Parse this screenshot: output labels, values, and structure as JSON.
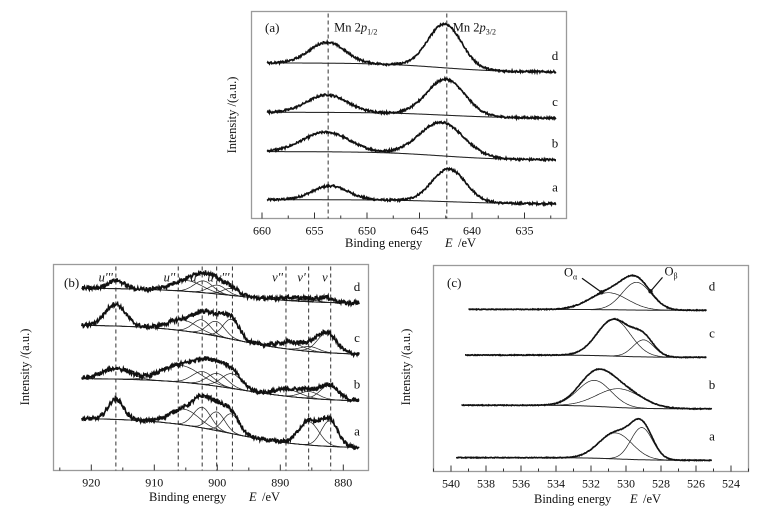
{
  "chart_data": [
    {
      "id": "a",
      "type": "line",
      "title": "(a)",
      "panel_label": "(a)",
      "xlabel": "Binding energy",
      "xlabel_var": "E",
      "xlabel_unit": "/eV",
      "ylabel": "Intensity /(a.u.)",
      "xlim": [
        661,
        631
      ],
      "xticks": [
        660,
        655,
        650,
        645,
        640,
        635
      ],
      "xminor_step": 2.5,
      "grid": false,
      "reference_lines": [
        {
          "x": 653.7,
          "label_main": "Mn 2",
          "label_italic": "p",
          "label_sub": "1/2"
        },
        {
          "x": 642.4,
          "label_main": "Mn 2",
          "label_italic": "p",
          "label_sub": "3/2"
        }
      ],
      "x_range": [
        659.5,
        632
      ],
      "series": [
        {
          "name": "a",
          "offset": 0.0,
          "bg_high": 0.1,
          "bg_low": 0.0,
          "bg_step": 642.0,
          "peaks": [
            {
              "center": 653.5,
              "height": 0.33,
              "width": 1.7
            },
            {
              "center": 642.2,
              "height": 0.78,
              "width": 1.6
            }
          ]
        },
        {
          "name": "b",
          "offset": 1.05,
          "bg_high": 0.2,
          "bg_low": 0.0,
          "bg_step": 643.0,
          "peaks": [
            {
              "center": 653.9,
              "height": 0.47,
              "width": 2.2
            },
            {
              "center": 642.9,
              "height": 0.8,
              "width": 2.1
            }
          ]
        },
        {
          "name": "c",
          "offset": 2.05,
          "bg_high": 0.14,
          "bg_low": 0.0,
          "bg_step": 642.5,
          "peaks": [
            {
              "center": 653.8,
              "height": 0.42,
              "width": 1.9
            },
            {
              "center": 642.5,
              "height": 0.86,
              "width": 1.8
            }
          ]
        },
        {
          "name": "d",
          "offset": 3.15,
          "bg_high": 0.22,
          "bg_low": 0.0,
          "bg_step": 643.0,
          "peaks": [
            {
              "center": 653.8,
              "height": 0.5,
              "width": 1.7
            },
            {
              "center": 642.6,
              "height": 1.05,
              "width": 1.6
            }
          ]
        }
      ],
      "ylim": [
        -0.35,
        4.6
      ]
    },
    {
      "id": "b",
      "type": "line",
      "title": "(b)",
      "panel_label": "(b)",
      "xlabel": "Binding energy",
      "xlabel_var": "E",
      "xlabel_unit": "/eV",
      "ylabel": "Intensity /(a.u.)",
      "xlim": [
        926,
        876
      ],
      "xticks": [
        920,
        910,
        900,
        890,
        880
      ],
      "xminor_step": 5,
      "grid": false,
      "reference_lines": [
        {
          "x": 916.1,
          "label": "u'''"
        },
        {
          "x": 906.2,
          "label": "u''"
        },
        {
          "x": 902.4,
          "label": "u'"
        },
        {
          "x": 900.1,
          "label": "u"
        },
        {
          "x": 897.6,
          "label": "v'''"
        },
        {
          "x": 889.1,
          "label": "v''"
        },
        {
          "x": 885.5,
          "label": "v'"
        },
        {
          "x": 882.0,
          "label": "v"
        }
      ],
      "x_range": [
        921.5,
        877.5
      ],
      "series": [
        {
          "name": "a",
          "offset": 0.0,
          "bg_high": 0.62,
          "bg_low": 0.0,
          "bg_step": 898.0,
          "peaks": [
            {
              "center": 916.1,
              "height": 0.42,
              "width": 1.2
            },
            {
              "center": 905.2,
              "height": 0.32,
              "width": 2.3
            },
            {
              "center": 902.4,
              "height": 0.42,
              "width": 1.4
            },
            {
              "center": 900.1,
              "height": 0.38,
              "width": 1.3
            },
            {
              "center": 897.8,
              "height": 0.4,
              "width": 1.3
            },
            {
              "center": 885.5,
              "height": 0.48,
              "width": 1.6
            },
            {
              "center": 882.2,
              "height": 0.52,
              "width": 1.3
            }
          ]
        },
        {
          "name": "b",
          "offset": 0.95,
          "bg_high": 0.48,
          "bg_low": 0.0,
          "bg_step": 896.0,
          "peaks": [
            {
              "center": 916.0,
              "height": 0.22,
              "width": 2.2
            },
            {
              "center": 905.8,
              "height": 0.34,
              "width": 3.0
            },
            {
              "center": 902.3,
              "height": 0.26,
              "width": 1.7
            },
            {
              "center": 900.0,
              "height": 0.26,
              "width": 1.6
            },
            {
              "center": 897.7,
              "height": 0.3,
              "width": 1.6
            },
            {
              "center": 888.8,
              "height": 0.14,
              "width": 2.0
            },
            {
              "center": 885.4,
              "height": 0.14,
              "width": 1.5
            },
            {
              "center": 882.2,
              "height": 0.3,
              "width": 1.4
            }
          ]
        },
        {
          "name": "c",
          "offset": 1.9,
          "bg_high": 0.62,
          "bg_low": 0.0,
          "bg_step": 897.0,
          "peaks": [
            {
              "center": 916.2,
              "height": 0.45,
              "width": 1.6
            },
            {
              "center": 905.5,
              "height": 0.22,
              "width": 2.3
            },
            {
              "center": 902.5,
              "height": 0.28,
              "width": 1.4
            },
            {
              "center": 900.2,
              "height": 0.3,
              "width": 1.4
            },
            {
              "center": 897.8,
              "height": 0.4,
              "width": 1.3
            },
            {
              "center": 888.5,
              "height": 0.14,
              "width": 2.0
            },
            {
              "center": 885.3,
              "height": 0.1,
              "width": 1.4
            },
            {
              "center": 882.6,
              "height": 0.4,
              "width": 1.5
            }
          ]
        },
        {
          "name": "d",
          "offset": 2.95,
          "bg_high": 0.32,
          "bg_low": 0.0,
          "bg_step": 897.0,
          "peaks": [
            {
              "center": 916.1,
              "height": 0.17,
              "width": 1.3
            },
            {
              "center": 904.8,
              "height": 0.22,
              "width": 2.4
            },
            {
              "center": 902.2,
              "height": 0.24,
              "width": 1.5
            },
            {
              "center": 900.0,
              "height": 0.18,
              "width": 1.4
            },
            {
              "center": 897.8,
              "height": 0.14,
              "width": 1.3
            },
            {
              "center": 888.8,
              "height": 0.06,
              "width": 1.8
            },
            {
              "center": 885.6,
              "height": 0.05,
              "width": 1.4
            },
            {
              "center": 882.8,
              "height": 0.1,
              "width": 1.2
            }
          ]
        }
      ],
      "ylim": [
        -0.45,
        3.75
      ]
    },
    {
      "id": "c",
      "type": "line",
      "title": "(c)",
      "panel_label": "(c)",
      "xlabel": "Binding energy",
      "xlabel_var": "E",
      "xlabel_unit": "/eV",
      "ylabel": "Intensity /(a.u.)",
      "xlim": [
        541,
        523
      ],
      "xticks": [
        540,
        538,
        536,
        534,
        532,
        530,
        528,
        526,
        524
      ],
      "xminor_step": 1,
      "grid": false,
      "annotations": [
        {
          "label": "O",
          "sub": "α",
          "target_series": "d",
          "target_x": 531.4,
          "text_x": 533.2
        },
        {
          "label": "O",
          "sub": "β",
          "target_series": "d",
          "target_x": 528.6,
          "text_x": 527.8
        }
      ],
      "series": [
        {
          "name": "a",
          "offset": 0.0,
          "x_range": [
            539.7,
            525.1
          ],
          "bg_high": 0.06,
          "bg_low": 0.0,
          "bg_step": 530.5,
          "peaks": [
            {
              "center": 530.6,
              "height": 0.58,
              "width": 0.95
            },
            {
              "center": 529.1,
              "height": 0.72,
              "width": 0.62
            }
          ]
        },
        {
          "name": "b",
          "offset": 1.15,
          "x_range": [
            539.4,
            525.1
          ],
          "bg_high": 0.08,
          "bg_low": 0.0,
          "bg_step": 531.0,
          "peaks": [
            {
              "center": 531.8,
              "height": 0.58,
              "width": 0.95
            },
            {
              "center": 530.4,
              "height": 0.42,
              "width": 1.25
            }
          ]
        },
        {
          "name": "c",
          "offset": 2.3,
          "x_range": [
            539.2,
            525.4
          ],
          "bg_high": 0.05,
          "bg_low": 0.0,
          "bg_step": 530.5,
          "peaks": [
            {
              "center": 530.7,
              "height": 0.82,
              "width": 0.95
            },
            {
              "center": 529.0,
              "height": 0.38,
              "width": 0.6
            }
          ]
        },
        {
          "name": "d",
          "offset": 3.35,
          "x_range": [
            539.0,
            525.4
          ],
          "bg_high": 0.02,
          "bg_low": 0.0,
          "bg_step": 530.5,
          "peaks": [
            {
              "center": 531.0,
              "height": 0.38,
              "width": 1.1
            },
            {
              "center": 529.4,
              "height": 0.62,
              "width": 0.82
            }
          ]
        }
      ],
      "ylim": [
        -0.25,
        4.35
      ]
    }
  ]
}
